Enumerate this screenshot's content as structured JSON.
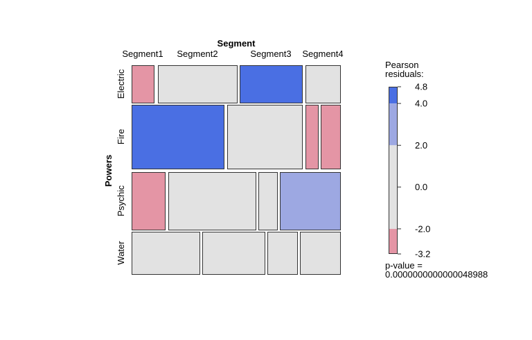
{
  "chart_data": {
    "type": "mosaic",
    "col_variable": "Segment",
    "row_variable": "Powers",
    "columns": [
      "Segment1",
      "Segment2",
      "Segment3",
      "Segment4"
    ],
    "rows": [
      "Electric",
      "Fire",
      "Psychic",
      "Water"
    ],
    "cells": [
      {
        "row": "Electric",
        "col": "Segment1",
        "shade": "neg_moderate"
      },
      {
        "row": "Electric",
        "col": "Segment2",
        "shade": "neutral"
      },
      {
        "row": "Electric",
        "col": "Segment3",
        "shade": "pos_strong"
      },
      {
        "row": "Electric",
        "col": "Segment4",
        "shade": "neutral"
      },
      {
        "row": "Fire",
        "col": "Segment1",
        "shade": "pos_strong"
      },
      {
        "row": "Fire",
        "col": "Segment2",
        "shade": "neutral"
      },
      {
        "row": "Fire",
        "col": "Segment3",
        "shade": "neg_moderate"
      },
      {
        "row": "Fire",
        "col": "Segment4",
        "shade": "neg_moderate"
      },
      {
        "row": "Psychic",
        "col": "Segment1",
        "shade": "neg_moderate"
      },
      {
        "row": "Psychic",
        "col": "Segment2",
        "shade": "neutral"
      },
      {
        "row": "Psychic",
        "col": "Segment3",
        "shade": "neutral"
      },
      {
        "row": "Psychic",
        "col": "Segment4",
        "shade": "pos_moderate"
      },
      {
        "row": "Water",
        "col": "Segment1",
        "shade": "neutral"
      },
      {
        "row": "Water",
        "col": "Segment2",
        "shade": "neutral"
      },
      {
        "row": "Water",
        "col": "Segment3",
        "shade": "neutral"
      },
      {
        "row": "Water",
        "col": "Segment4",
        "shade": "neutral"
      }
    ],
    "legend": {
      "title_line1": "Pearson",
      "title_line2": "residuals:",
      "range": [
        -3.2,
        4.8
      ],
      "ticks": [
        "4.8",
        "4.0",
        "2.0",
        "0.0",
        "-2.0",
        "-3.2"
      ],
      "bands": [
        {
          "from": 4.0,
          "to": 4.8,
          "shade": "pos_strong"
        },
        {
          "from": 2.0,
          "to": 4.0,
          "shade": "pos_moderate"
        },
        {
          "from": -2.0,
          "to": 2.0,
          "shade": "neutral"
        },
        {
          "from": -3.2,
          "to": -2.0,
          "shade": "neg_moderate"
        }
      ],
      "pvalue_label": "p-value =",
      "pvalue": "0.0000000000000048988"
    },
    "colors": {
      "pos_strong": "#4a6fe3",
      "pos_moderate": "#9da8e2",
      "neutral": "#e2e2e2",
      "neg_moderate": "#e495a5",
      "border": "#333333"
    }
  }
}
